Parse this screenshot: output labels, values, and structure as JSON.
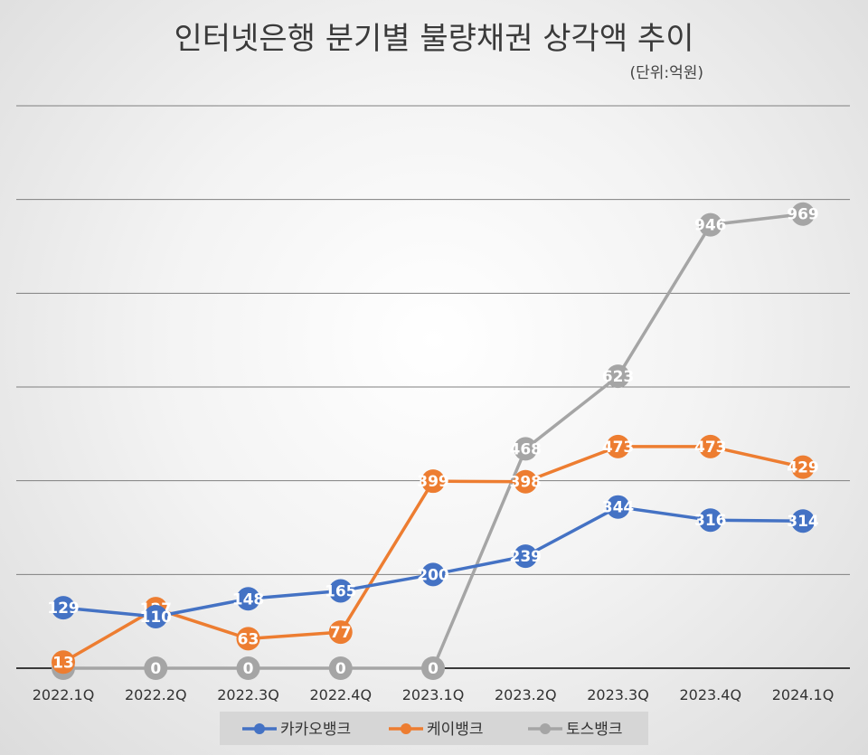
{
  "chart_data": {
    "type": "line",
    "title": "인터넷은행 분기별 불량채권 상각액 추이",
    "unit_note": "(단위:억원)",
    "categories": [
      "2022.1Q",
      "2022.2Q",
      "2022.3Q",
      "2022.4Q",
      "2023.1Q",
      "2023.2Q",
      "2023.3Q",
      "2023.4Q",
      "2024.1Q"
    ],
    "ylim": [
      0,
      1200
    ],
    "grid": true,
    "legend_position": "bottom",
    "series": [
      {
        "name": "카카오뱅크",
        "color": "#4472c4",
        "values": [
          129,
          110,
          148,
          165,
          200,
          239,
          344,
          316,
          314
        ]
      },
      {
        "name": "케이뱅크",
        "color": "#ed7d31",
        "values": [
          13,
          127,
          63,
          77,
          399,
          398,
          473,
          473,
          429
        ]
      },
      {
        "name": "토스뱅크",
        "color": "#a5a5a5",
        "values": [
          0,
          0,
          0,
          0,
          0,
          468,
          623,
          946,
          969
        ]
      }
    ]
  }
}
